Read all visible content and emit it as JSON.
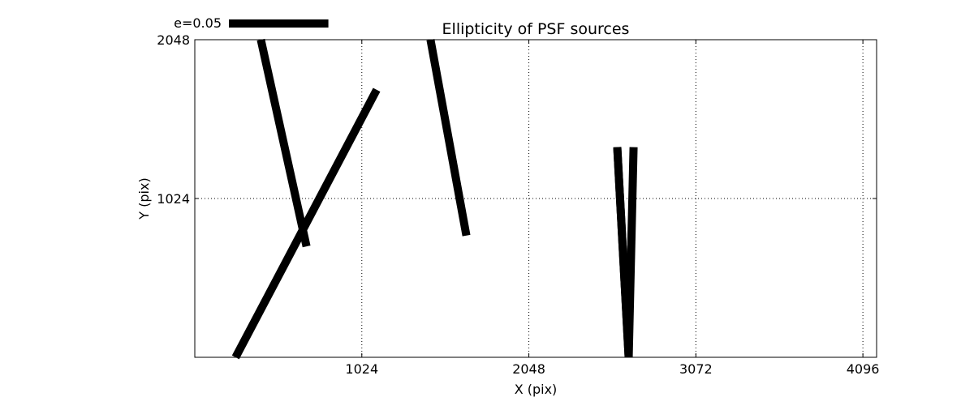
{
  "chart_data": {
    "type": "line",
    "title": "Ellipticity of PSF sources",
    "xlabel": "X (pix)",
    "ylabel": "Y (pix)",
    "xlim": [
      0,
      4180
    ],
    "ylim": [
      0,
      2048
    ],
    "x_ticks": [
      1024,
      2048,
      3072,
      4096
    ],
    "x_tick_labels": [
      "1024",
      "2048",
      "3072",
      "4096"
    ],
    "y_ticks": [
      1024,
      2048
    ],
    "y_tick_labels": [
      "1024",
      "2048"
    ],
    "grid": true,
    "legend": {
      "label": "e=0.05",
      "position": "top-left",
      "length_x": 610
    },
    "sticks": [
      {
        "x0": 405,
        "y0": 2048,
        "x1": 685,
        "y1": 715
      },
      {
        "x0": 250,
        "y0": 0,
        "x1": 1115,
        "y1": 1725
      },
      {
        "x0": 1445,
        "y0": 2048,
        "x1": 1665,
        "y1": 785
      },
      {
        "x0": 2690,
        "y0": 1355,
        "x1": 2660,
        "y1": 0
      },
      {
        "x0": 2590,
        "y0": 1355,
        "x1": 2660,
        "y1": 0
      },
      {
        "x0": 2590,
        "y0": 1355,
        "x1": 2660,
        "y1": 0
      }
    ]
  }
}
